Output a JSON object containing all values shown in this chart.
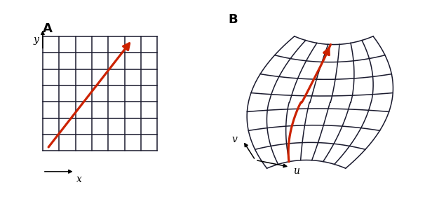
{
  "background_color": "#ffffff",
  "grid_color": "#1a1a2e",
  "arrow_color": "#cc2200",
  "label_A": "A",
  "label_B": "B",
  "xlabel_left": "x",
  "ylabel_left": "y",
  "xlabel_right": "u",
  "ylabel_right": "v",
  "grid_n": 7,
  "fig_width": 6.06,
  "fig_height": 3.04
}
